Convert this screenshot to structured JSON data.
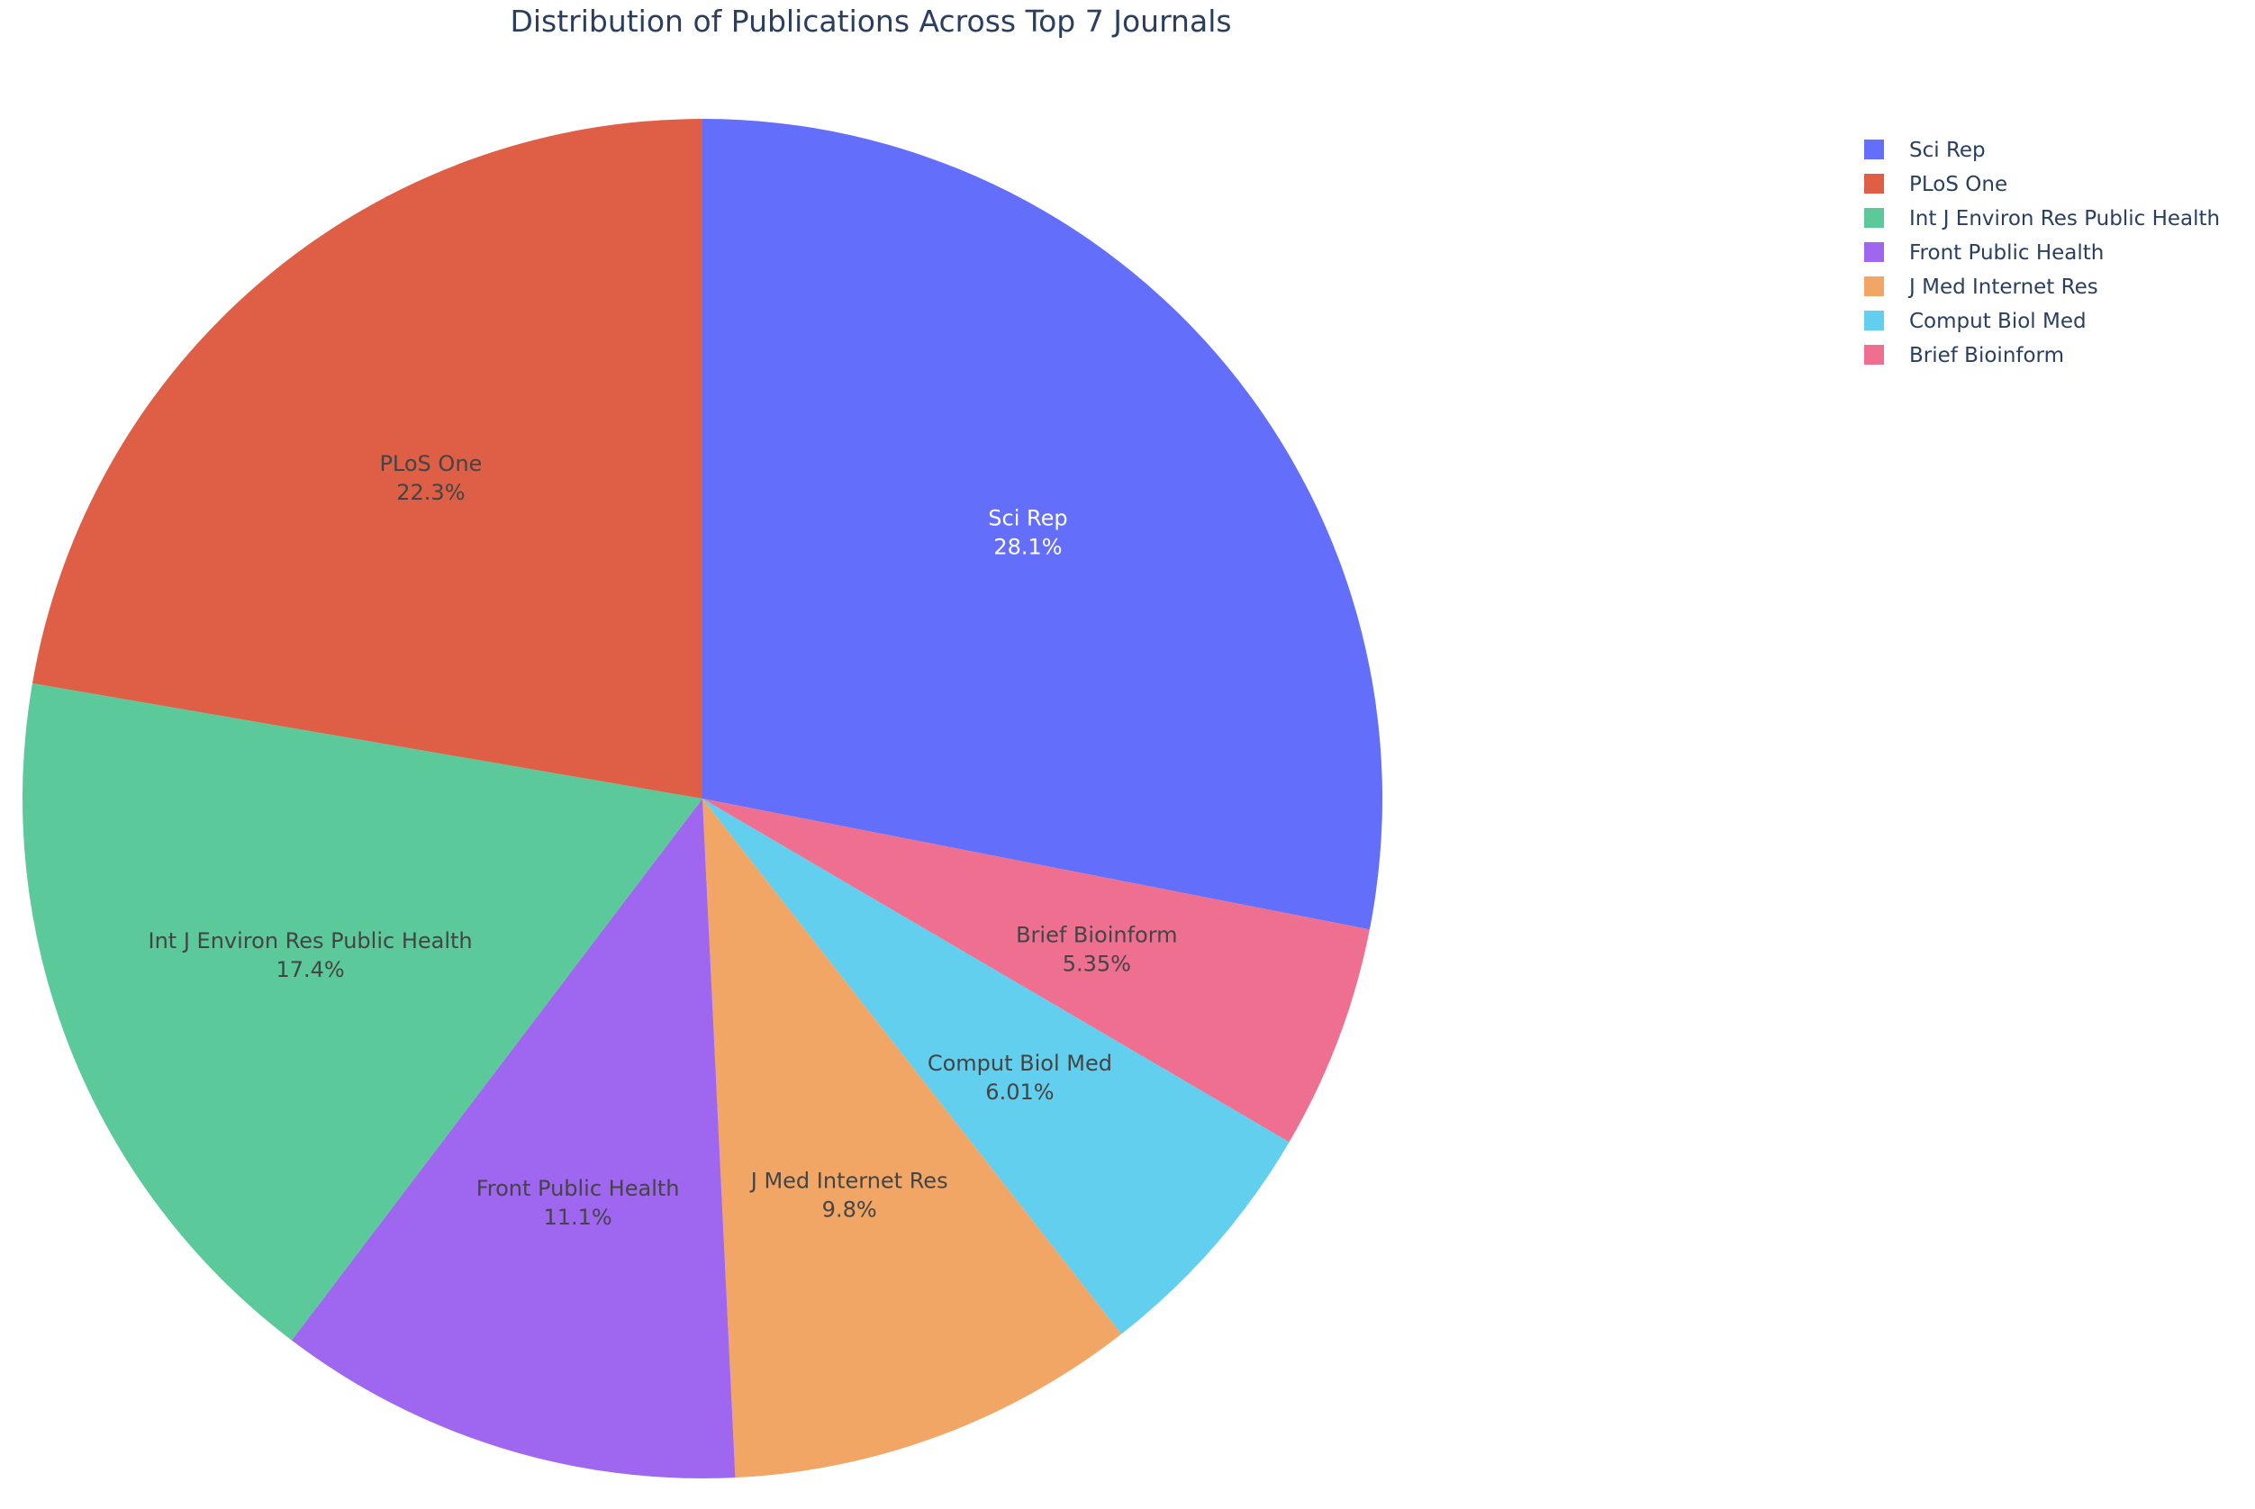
{
  "chart_data": {
    "type": "pie",
    "title": "Distribution of Publications Across Top 7 Journals",
    "legend_position": "top-right",
    "direction": "clockwise",
    "start": "top",
    "slices": [
      {
        "label": "Sci Rep",
        "percent_text": "28.1%",
        "value": 28.1,
        "color": "#636efa",
        "text_color": "#ffffff"
      },
      {
        "label": "Brief Bioinform",
        "percent_text": "5.35%",
        "value": 5.35,
        "color": "#ef6f91",
        "text_color": "#444444"
      },
      {
        "label": "Comput Biol Med",
        "percent_text": "6.01%",
        "value": 6.01,
        "color": "#61cfed",
        "text_color": "#444444"
      },
      {
        "label": "J Med Internet Res",
        "percent_text": "9.8%",
        "value": 9.8,
        "color": "#f2a666",
        "text_color": "#444444"
      },
      {
        "label": "Front Public Health",
        "percent_text": "11.1%",
        "value": 11.1,
        "color": "#9f66f0",
        "text_color": "#444444"
      },
      {
        "label": "Int J Environ Res Public Health",
        "percent_text": "17.4%",
        "value": 17.4,
        "color": "#5bc99a",
        "text_color": "#444444"
      },
      {
        "label": "PLoS One",
        "percent_text": "22.3%",
        "value": 22.3,
        "color": "#de5f45",
        "text_color": "#444444"
      }
    ],
    "legend": [
      {
        "label": "Sci Rep",
        "color": "#636efa"
      },
      {
        "label": "PLoS One",
        "color": "#de5f45"
      },
      {
        "label": "Int J Environ Res Public Health",
        "color": "#5bc99a"
      },
      {
        "label": "Front Public Health",
        "color": "#9f66f0"
      },
      {
        "label": "J Med Internet Res",
        "color": "#f2a666"
      },
      {
        "label": "Comput Biol Med",
        "color": "#61cfed"
      },
      {
        "label": "Brief Bioinform",
        "color": "#ef6f91"
      }
    ]
  }
}
